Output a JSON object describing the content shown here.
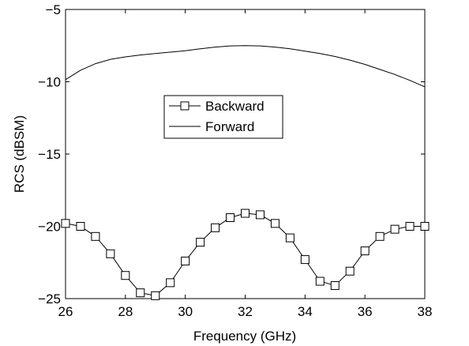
{
  "chart_data": {
    "type": "line",
    "title": "",
    "xlabel": "Frequency (GHz)",
    "ylabel": "RCS (dBSM)",
    "xlim": [
      26,
      38
    ],
    "ylim": [
      -25,
      -5
    ],
    "xticks": [
      26,
      28,
      30,
      32,
      34,
      36,
      38
    ],
    "yticks": [
      -25,
      -20,
      -15,
      -10,
      -5
    ],
    "grid": false,
    "legend_position": "center-left",
    "series": [
      {
        "name": "Backward",
        "marker": "square",
        "color": "#000000",
        "x": [
          26,
          26.5,
          27,
          27.5,
          28,
          28.5,
          29,
          29.5,
          30,
          30.5,
          31,
          31.5,
          32,
          32.5,
          33,
          33.5,
          34,
          34.5,
          35,
          35.5,
          36,
          36.5,
          37,
          37.5,
          38
        ],
        "y": [
          -19.8,
          -20.0,
          -20.7,
          -21.9,
          -23.4,
          -24.6,
          -24.8,
          -23.9,
          -22.4,
          -21.1,
          -20.1,
          -19.4,
          -19.1,
          -19.2,
          -19.8,
          -20.8,
          -22.3,
          -23.8,
          -24.1,
          -23.1,
          -21.7,
          -20.7,
          -20.2,
          -20.0,
          -20.0
        ]
      },
      {
        "name": "Forward",
        "marker": "none",
        "color": "#000000",
        "x": [
          26,
          26.5,
          27,
          27.5,
          28,
          28.5,
          29,
          29.5,
          30,
          30.5,
          31,
          31.5,
          32,
          32.5,
          33,
          33.5,
          34,
          34.5,
          35,
          35.5,
          36,
          36.5,
          37,
          37.5,
          38
        ],
        "y": [
          -9.85,
          -9.2,
          -8.75,
          -8.45,
          -8.28,
          -8.15,
          -8.05,
          -7.95,
          -7.85,
          -7.72,
          -7.6,
          -7.52,
          -7.5,
          -7.52,
          -7.6,
          -7.72,
          -7.88,
          -8.05,
          -8.25,
          -8.5,
          -8.8,
          -9.15,
          -9.5,
          -9.9,
          -10.35
        ]
      }
    ]
  }
}
